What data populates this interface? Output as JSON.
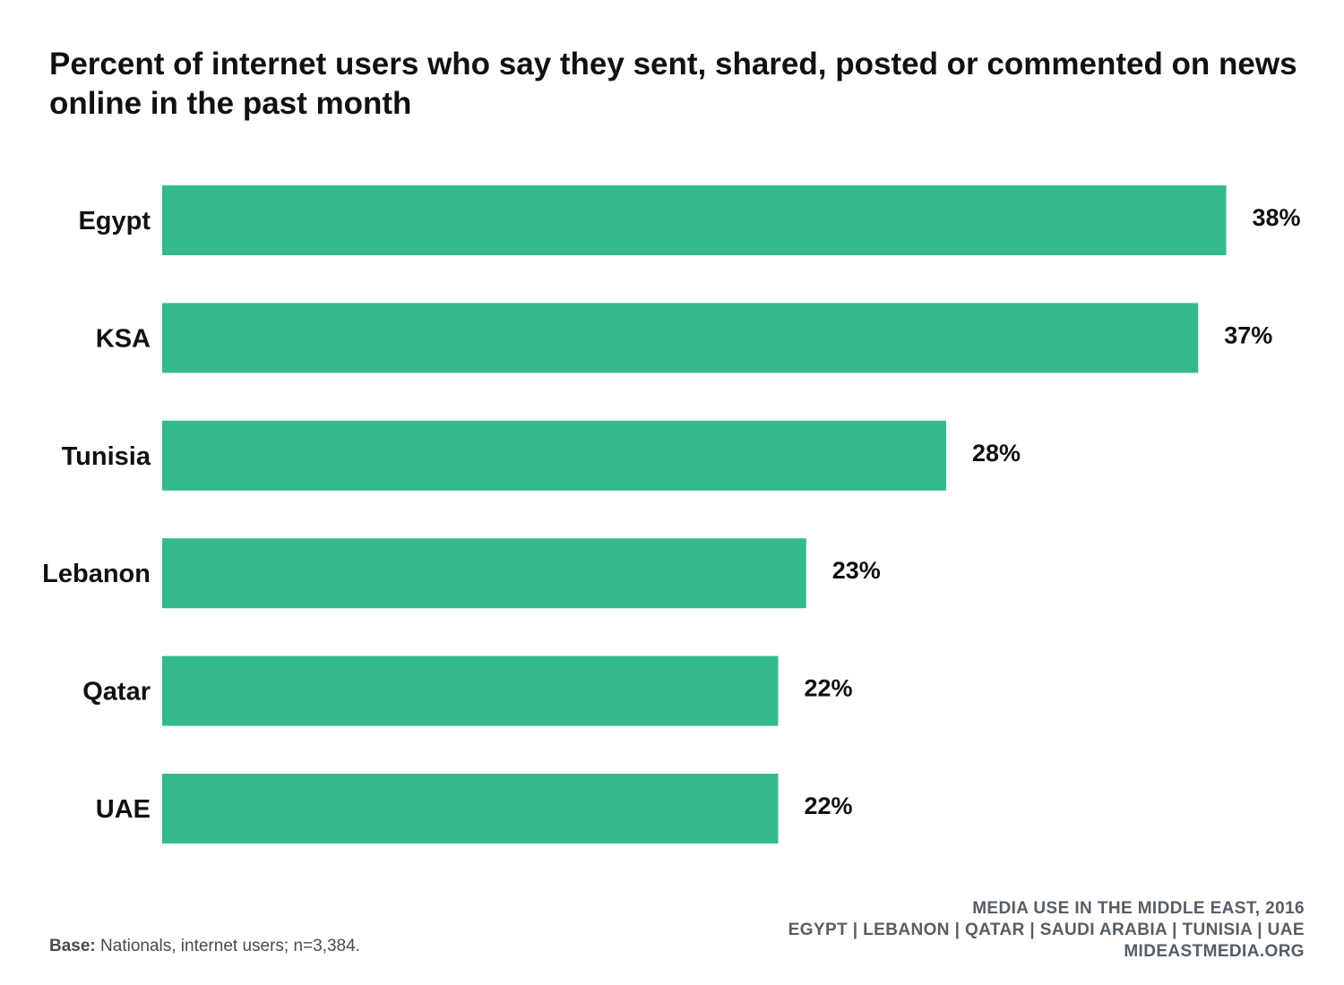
{
  "title": "Percent of internet users who say they sent, shared, posted or commented on news online in the past month",
  "chart_data": {
    "type": "bar",
    "orientation": "horizontal",
    "categories": [
      "Egypt",
      "KSA",
      "Tunisia",
      "Lebanon",
      "Qatar",
      "UAE"
    ],
    "values": [
      38,
      37,
      28,
      23,
      22,
      22
    ],
    "value_labels": [
      "38%",
      "37%",
      "28%",
      "23%",
      "22%",
      "22%"
    ],
    "xlim": [
      0,
      40
    ],
    "grid": false,
    "bar_color": "#34BA8E"
  },
  "footnote": {
    "label": "Base:",
    "text": " Nationals, internet users; n=3,384."
  },
  "source": {
    "line1": "MEDIA USE IN THE MIDDLE EAST, 2016",
    "line2": "EGYPT | LEBANON | QATAR | SAUDI ARABIA | TUNISIA | UAE",
    "line3": "MIDEASTMEDIA.ORG"
  }
}
